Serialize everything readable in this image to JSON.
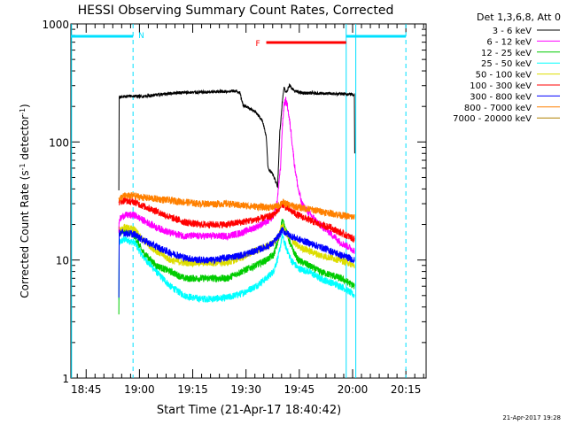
{
  "chart_data": {
    "type": "line",
    "title": "HESSI Observing Summary Count Rates, Corrected",
    "xlabel": "Start Time (21-Apr-17 18:40:42)",
    "ylabel_main": "Corrected Count Rate (s",
    "ylabel_sup1": "-1",
    "ylabel_mid": " detector",
    "ylabel_sup2": "-1",
    "ylabel_end": ")",
    "yscale": "log",
    "ylim": [
      1,
      1000
    ],
    "xlim_minutes": [
      0,
      100
    ],
    "x_ticks": [
      {
        "t": 4.3,
        "label": "18:45"
      },
      {
        "t": 19.3,
        "label": "19:00"
      },
      {
        "t": 34.3,
        "label": "19:15"
      },
      {
        "t": 49.3,
        "label": "19:30"
      },
      {
        "t": 64.3,
        "label": "19:45"
      },
      {
        "t": 79.3,
        "label": "20:00"
      },
      {
        "t": 94.3,
        "label": "20:15"
      }
    ],
    "y_ticks": [
      {
        "v": 1,
        "label": "1"
      },
      {
        "v": 10,
        "label": "10"
      },
      {
        "v": 100,
        "label": "100"
      },
      {
        "v": 1000,
        "label": "1000"
      }
    ],
    "legend_header": "Det 1,3,6,8, Att 0",
    "legend_placement": "top-right, outside plot",
    "series": [
      {
        "name": "3 - 6 keV",
        "color": "#000000",
        "points": [
          [
            13.5,
            38
          ],
          [
            13.6,
            240
          ],
          [
            17,
            245
          ],
          [
            20,
            243
          ],
          [
            25,
            252
          ],
          [
            30,
            262
          ],
          [
            35,
            263
          ],
          [
            40,
            265
          ],
          [
            46,
            270
          ],
          [
            47.5,
            265
          ],
          [
            48.5,
            205
          ],
          [
            50,
            195
          ],
          [
            52,
            180
          ],
          [
            54,
            150
          ],
          [
            55,
            110
          ],
          [
            55.5,
            60
          ],
          [
            56.5,
            55
          ],
          [
            57.5,
            48
          ],
          [
            58.2,
            42
          ],
          [
            58.8,
            120
          ],
          [
            59.5,
            215
          ],
          [
            60,
            290
          ],
          [
            60.5,
            265
          ],
          [
            61,
            275
          ],
          [
            61.5,
            300
          ],
          [
            62,
            290
          ],
          [
            63,
            270
          ],
          [
            65,
            260
          ],
          [
            70,
            258
          ],
          [
            75,
            255
          ],
          [
            78,
            255
          ],
          [
            79.8,
            252
          ],
          [
            79.9,
            80
          ]
        ]
      },
      {
        "name": "6 - 12 keV",
        "color": "#ff00ff",
        "points": [
          [
            13.5,
            17
          ],
          [
            13.6,
            22
          ],
          [
            15,
            24
          ],
          [
            18,
            24
          ],
          [
            20,
            22
          ],
          [
            24,
            19
          ],
          [
            28,
            17
          ],
          [
            32,
            16
          ],
          [
            36,
            16
          ],
          [
            40,
            16
          ],
          [
            44,
            16
          ],
          [
            48,
            17
          ],
          [
            52,
            19
          ],
          [
            55,
            21
          ],
          [
            56,
            22
          ],
          [
            57,
            24
          ],
          [
            58,
            30
          ],
          [
            59,
            60
          ],
          [
            59.5,
            130
          ],
          [
            60,
            210
          ],
          [
            60.5,
            225
          ],
          [
            61,
            200
          ],
          [
            62,
            120
          ],
          [
            63,
            62
          ],
          [
            64,
            40
          ],
          [
            65,
            30
          ],
          [
            67,
            25
          ],
          [
            70,
            20
          ],
          [
            73,
            17
          ],
          [
            76,
            14
          ],
          [
            78,
            13
          ],
          [
            79.8,
            12
          ]
        ]
      },
      {
        "name": "12 - 25 keV",
        "color": "#00cc00",
        "points": [
          [
            13.5,
            3.5
          ],
          [
            13.6,
            17
          ],
          [
            15,
            18
          ],
          [
            18,
            16
          ],
          [
            20,
            12
          ],
          [
            24,
            9
          ],
          [
            28,
            8
          ],
          [
            32,
            7
          ],
          [
            36,
            7
          ],
          [
            40,
            7
          ],
          [
            44,
            7
          ],
          [
            48,
            8
          ],
          [
            52,
            9
          ],
          [
            55,
            10
          ],
          [
            57,
            11
          ],
          [
            58.5,
            15
          ],
          [
            59.5,
            22
          ],
          [
            60.5,
            18
          ],
          [
            62,
            13
          ],
          [
            64,
            10
          ],
          [
            67,
            9
          ],
          [
            70,
            8
          ],
          [
            73,
            7.5
          ],
          [
            76,
            7
          ],
          [
            78,
            6.5
          ],
          [
            79.8,
            6
          ]
        ]
      },
      {
        "name": "25 - 50 keV",
        "color": "#00ffff",
        "points": [
          [
            13.5,
            4.5
          ],
          [
            13.6,
            14
          ],
          [
            15,
            15
          ],
          [
            18,
            14
          ],
          [
            20,
            11
          ],
          [
            24,
            8
          ],
          [
            28,
            6
          ],
          [
            32,
            5
          ],
          [
            36,
            4.7
          ],
          [
            40,
            4.7
          ],
          [
            44,
            4.8
          ],
          [
            48,
            5.2
          ],
          [
            52,
            6
          ],
          [
            55,
            7
          ],
          [
            57,
            8
          ],
          [
            58.5,
            11
          ],
          [
            59.5,
            16
          ],
          [
            60.5,
            13
          ],
          [
            62,
            10
          ],
          [
            64,
            8.5
          ],
          [
            67,
            8
          ],
          [
            70,
            7
          ],
          [
            73,
            6.5
          ],
          [
            76,
            6
          ],
          [
            78,
            5.5
          ],
          [
            79.8,
            5
          ]
        ]
      },
      {
        "name": "50 - 100 keV",
        "color": "#dddd00",
        "points": [
          [
            13.5,
            18
          ],
          [
            15,
            19
          ],
          [
            18,
            18
          ],
          [
            20,
            15
          ],
          [
            24,
            12
          ],
          [
            28,
            10
          ],
          [
            32,
            9.5
          ],
          [
            36,
            9.5
          ],
          [
            40,
            9.5
          ],
          [
            44,
            9.5
          ],
          [
            48,
            10.5
          ],
          [
            52,
            12
          ],
          [
            55,
            13
          ],
          [
            57,
            14
          ],
          [
            58.5,
            16
          ],
          [
            59.5,
            20
          ],
          [
            60.5,
            17
          ],
          [
            62,
            15
          ],
          [
            64,
            13
          ],
          [
            67,
            12
          ],
          [
            70,
            11
          ],
          [
            73,
            10.5
          ],
          [
            76,
            10
          ],
          [
            78,
            9.5
          ],
          [
            79.8,
            9
          ]
        ]
      },
      {
        "name": "100 - 300 keV",
        "color": "#ff0000",
        "points": [
          [
            13.5,
            31
          ],
          [
            15,
            32
          ],
          [
            18,
            31
          ],
          [
            20,
            29
          ],
          [
            24,
            26
          ],
          [
            28,
            23
          ],
          [
            32,
            21
          ],
          [
            36,
            20
          ],
          [
            40,
            20
          ],
          [
            44,
            20
          ],
          [
            48,
            21
          ],
          [
            52,
            22
          ],
          [
            55,
            23
          ],
          [
            57,
            24
          ],
          [
            58.5,
            27
          ],
          [
            59.5,
            30
          ],
          [
            60.5,
            28
          ],
          [
            62,
            26
          ],
          [
            64,
            24
          ],
          [
            67,
            22
          ],
          [
            70,
            20
          ],
          [
            73,
            19
          ],
          [
            76,
            17
          ],
          [
            78,
            16
          ],
          [
            79.8,
            15
          ]
        ]
      },
      {
        "name": "300 - 800 keV",
        "color": "#0000ff",
        "points": [
          [
            13.5,
            5
          ],
          [
            13.6,
            17
          ],
          [
            15,
            17
          ],
          [
            18,
            16.5
          ],
          [
            20,
            15
          ],
          [
            24,
            13
          ],
          [
            28,
            11.5
          ],
          [
            32,
            10.5
          ],
          [
            36,
            10
          ],
          [
            40,
            10
          ],
          [
            44,
            10.5
          ],
          [
            48,
            11
          ],
          [
            52,
            12
          ],
          [
            55,
            13
          ],
          [
            57,
            14
          ],
          [
            58.5,
            16
          ],
          [
            59.5,
            18
          ],
          [
            60.5,
            17
          ],
          [
            62,
            16
          ],
          [
            64,
            15
          ],
          [
            67,
            14
          ],
          [
            70,
            13
          ],
          [
            73,
            12
          ],
          [
            76,
            11
          ],
          [
            78,
            10.5
          ],
          [
            79.8,
            10
          ]
        ]
      },
      {
        "name": "800 - 7000 keV",
        "color": "#ff8000",
        "points": [
          [
            13.5,
            33
          ],
          [
            15,
            35
          ],
          [
            18,
            35
          ],
          [
            20,
            34
          ],
          [
            24,
            33
          ],
          [
            28,
            32
          ],
          [
            32,
            31
          ],
          [
            36,
            30
          ],
          [
            40,
            30
          ],
          [
            44,
            30
          ],
          [
            48,
            29
          ],
          [
            52,
            28.5
          ],
          [
            55,
            28
          ],
          [
            57,
            28
          ],
          [
            58.5,
            29
          ],
          [
            59.5,
            31
          ],
          [
            60.5,
            30
          ],
          [
            62,
            29
          ],
          [
            64,
            28
          ],
          [
            67,
            27
          ],
          [
            70,
            26
          ],
          [
            73,
            25
          ],
          [
            76,
            24
          ],
          [
            78,
            23.5
          ],
          [
            79.8,
            23
          ]
        ]
      },
      {
        "name": "7000 - 20000 keV",
        "color": "#b08000",
        "points": []
      }
    ],
    "attenuator_bars": [
      {
        "start": 0,
        "end": 17.5,
        "color": "#00e0ff",
        "label": "N"
      },
      {
        "start": 77.5,
        "end": 94.3,
        "color": "#00e0ff",
        "label": ""
      }
    ],
    "flare_bar": {
      "start": 55,
      "end": 77.5,
      "color": "#ff0000",
      "label": "F"
    },
    "night_markers": [
      {
        "t": 0.2,
        "style": "solid"
      },
      {
        "t": 17.5,
        "style": "dashed"
      },
      {
        "t": 77.5,
        "style": "solid"
      },
      {
        "t": 80.2,
        "style": "solid"
      },
      {
        "t": 94.3,
        "style": "dashed"
      }
    ]
  },
  "footer_date": "21-Apr-2017 19:28"
}
